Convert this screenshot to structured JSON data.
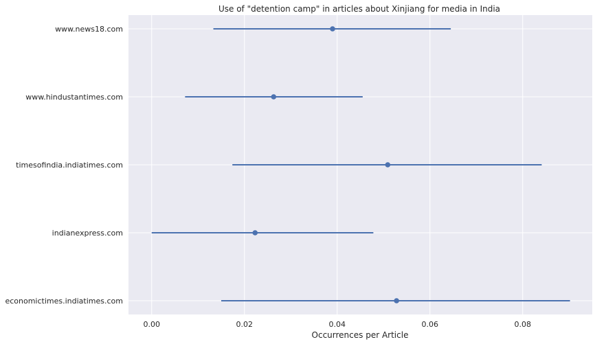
{
  "chart_data": {
    "type": "scatter",
    "title": "Use of \"detention camp\" in articles about Xinjiang for media in India",
    "xlabel": "Occurrences per Article",
    "ylabel": "",
    "xlim": [
      -0.005,
      0.095
    ],
    "x_ticks": [
      "0.00",
      "0.02",
      "0.04",
      "0.06",
      "0.08"
    ],
    "x_tick_values": [
      0.0,
      0.02,
      0.04,
      0.06,
      0.08
    ],
    "grid": true,
    "background": "#eaeaf2",
    "series_color": "#4c72b0",
    "categories": [
      "www.news18.com",
      "www.hindustantimes.com",
      "timesofindia.indiatimes.com",
      "indianexpress.com",
      "economictimes.indiatimes.com"
    ],
    "values": [
      0.039,
      0.0263,
      0.0509,
      0.0223,
      0.0528
    ],
    "ci_low": [
      0.0133,
      0.0072,
      0.0174,
      0.0,
      0.015
    ],
    "ci_high": [
      0.0645,
      0.0455,
      0.0841,
      0.0478,
      0.0902
    ]
  }
}
